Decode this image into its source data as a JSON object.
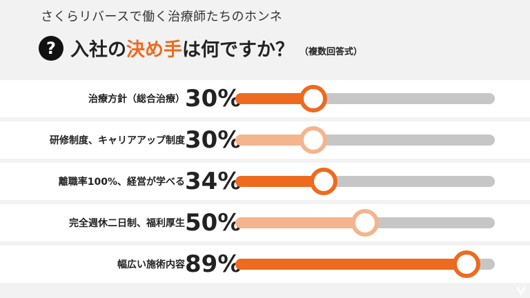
{
  "header": {
    "subtitle": "さくらリバースで働く治療師たちのホンネ",
    "question_icon": "question-mark-icon",
    "title_part1": "入社の",
    "title_highlight": "決め手",
    "title_part2": "は何ですか？",
    "title_note": "（複数回答式）"
  },
  "colors": {
    "dark_orange": "#ee6a1f",
    "light_orange": "#f4b48c",
    "track_gray": "#c6c6c6",
    "background": "#f2f2f2"
  },
  "chart_data": {
    "type": "bar",
    "orientation": "horizontal",
    "categories": [
      "治療方針（総合治療）",
      "研修制度、キャリアアップ制度",
      "離職率100%、経営が学べる",
      "完全週休二日制、福利厚生",
      "幅広い施術内容"
    ],
    "values": [
      30,
      30,
      34,
      50,
      89
    ],
    "value_labels": [
      "30%",
      "30%",
      "34%",
      "50%",
      "89%"
    ],
    "bar_colors": [
      "#ee6a1f",
      "#f4b48c",
      "#ee6a1f",
      "#f4b48c",
      "#ee6a1f"
    ],
    "xlim": [
      0,
      100
    ],
    "title": "入社の決め手は何ですか？",
    "xlabel": "",
    "ylabel": ""
  }
}
